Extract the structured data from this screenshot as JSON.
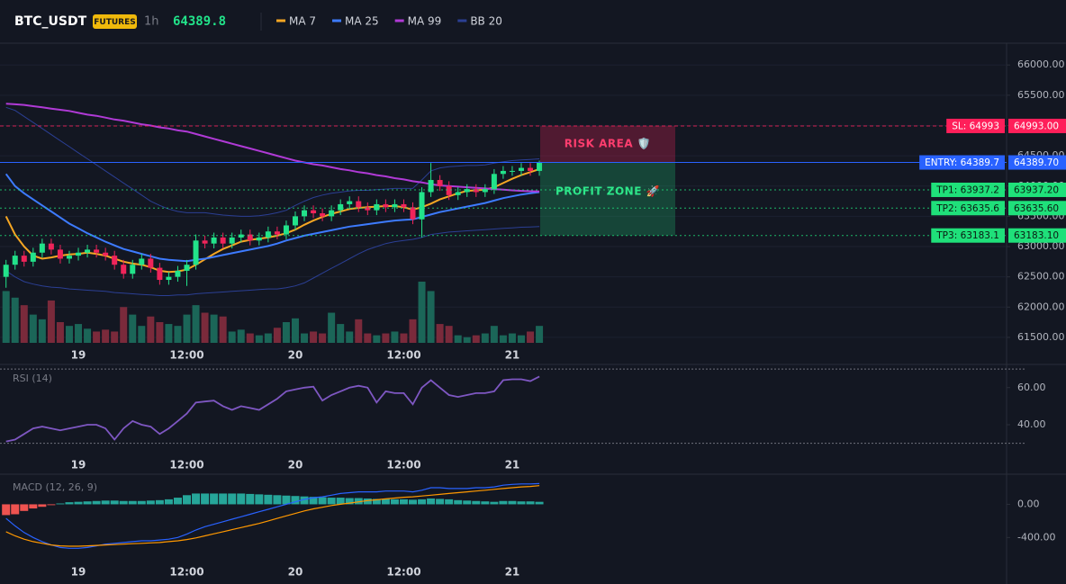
{
  "header": {
    "symbol": "BTC_USDT",
    "badge": "FUTURES",
    "interval": "1h",
    "price": "64389.8"
  },
  "chart_data": [
    {
      "type": "candlestick",
      "categories": [
        null,
        null,
        null,
        null,
        null,
        null,
        null,
        null,
        "19",
        null,
        null,
        null,
        null,
        null,
        null,
        null,
        null,
        null,
        null,
        null,
        "12:00",
        null,
        null,
        null,
        null,
        null,
        null,
        null,
        null,
        null,
        null,
        null,
        "20",
        null,
        null,
        null,
        null,
        null,
        null,
        null,
        null,
        null,
        null,
        null,
        "12:00",
        null,
        null,
        null,
        null,
        null,
        null,
        null,
        null,
        null,
        null,
        null,
        "21",
        null,
        null,
        null
      ],
      "open": [
        62500,
        62700,
        62850,
        62750,
        62900,
        63050,
        62950,
        62800,
        62850,
        62900,
        62950,
        62900,
        62850,
        62700,
        62550,
        62700,
        62800,
        62650,
        62450,
        62500,
        62600,
        62700,
        63100,
        63050,
        63150,
        63050,
        63150,
        63200,
        63100,
        63150,
        63250,
        63200,
        63350,
        63500,
        63600,
        63550,
        63500,
        63600,
        63700,
        63750,
        63650,
        63600,
        63700,
        63650,
        63700,
        63650,
        63450,
        63900,
        64100,
        64000,
        63850,
        63900,
        63950,
        63900,
        63950,
        64200,
        64250,
        64250,
        64300,
        64250
      ],
      "high": [
        62780,
        62930,
        62930,
        62980,
        63130,
        63130,
        63030,
        62930,
        62980,
        63030,
        63030,
        62980,
        62930,
        62780,
        62780,
        62880,
        62880,
        62730,
        62580,
        62680,
        62780,
        63200,
        63180,
        63230,
        63230,
        63230,
        63280,
        63280,
        63230,
        63330,
        63330,
        63430,
        63580,
        63680,
        63680,
        63630,
        63680,
        63780,
        63830,
        63830,
        63730,
        63780,
        63780,
        63780,
        63780,
        63730,
        63980,
        64380,
        64180,
        64080,
        63980,
        64030,
        64030,
        64030,
        64280,
        64330,
        64330,
        64380,
        64380,
        64420
      ],
      "low": [
        62320,
        62620,
        62670,
        62670,
        62820,
        62870,
        62720,
        62720,
        62770,
        62820,
        62820,
        62770,
        62620,
        62470,
        62470,
        62620,
        62570,
        62370,
        62370,
        62420,
        62350,
        62620,
        62970,
        62970,
        62970,
        62970,
        63070,
        63020,
        63020,
        63070,
        63120,
        63120,
        63270,
        63420,
        63470,
        63420,
        63420,
        63520,
        63620,
        63570,
        63520,
        63520,
        63570,
        63570,
        63570,
        63370,
        63150,
        63820,
        63920,
        63770,
        63770,
        63820,
        63820,
        63820,
        63870,
        64120,
        64170,
        64170,
        64170,
        64170
      ],
      "close": [
        62700,
        62850,
        62750,
        62900,
        63050,
        62950,
        62800,
        62850,
        62900,
        62950,
        62900,
        62850,
        62700,
        62550,
        62700,
        62800,
        62650,
        62450,
        62500,
        62600,
        62700,
        63100,
        63050,
        63150,
        63050,
        63150,
        63200,
        63100,
        63150,
        63250,
        63200,
        63350,
        63500,
        63600,
        63550,
        63500,
        63600,
        63700,
        63750,
        63650,
        63600,
        63700,
        63650,
        63700,
        63650,
        63450,
        63900,
        64100,
        64000,
        63850,
        63900,
        63950,
        63900,
        63950,
        64200,
        64250,
        64250,
        64300,
        64250,
        64389.8
      ],
      "volume": [
        55,
        48,
        40,
        30,
        25,
        45,
        22,
        18,
        20,
        15,
        12,
        14,
        12,
        38,
        30,
        18,
        28,
        22,
        20,
        18,
        30,
        40,
        32,
        30,
        28,
        12,
        14,
        10,
        8,
        10,
        16,
        22,
        26,
        10,
        12,
        10,
        32,
        20,
        12,
        25,
        10,
        8,
        10,
        12,
        10,
        25,
        65,
        55,
        20,
        18,
        8,
        6,
        8,
        10,
        18,
        8,
        10,
        8,
        12,
        18
      ],
      "up_color": "#22e38a",
      "down_color": "#f0245a",
      "volume_up_color": "#1b6658",
      "volume_down_color": "#7a2a3b",
      "overlays": [
        {
          "name": "MA 7",
          "color": "#f5a623",
          "values": [
            63500,
            63200,
            63000,
            62850,
            62800,
            62820,
            62850,
            62870,
            62880,
            62900,
            62880,
            62850,
            62800,
            62750,
            62720,
            62700,
            62660,
            62600,
            62580,
            62590,
            62620,
            62700,
            62790,
            62880,
            62960,
            63020,
            63080,
            63110,
            63130,
            63150,
            63180,
            63220,
            63280,
            63360,
            63430,
            63490,
            63540,
            63580,
            63620,
            63640,
            63650,
            63660,
            63670,
            63670,
            63650,
            63610,
            63650,
            63710,
            63780,
            63830,
            63880,
            63920,
            63930,
            63940,
            63980,
            64050,
            64120,
            64180,
            64230,
            64280
          ]
        },
        {
          "name": "MA 25",
          "color": "#3d7bff",
          "values": [
            64200,
            64000,
            63880,
            63780,
            63680,
            63580,
            63480,
            63380,
            63300,
            63220,
            63150,
            63080,
            63020,
            62960,
            62920,
            62880,
            62840,
            62800,
            62780,
            62770,
            62760,
            62780,
            62800,
            62830,
            62860,
            62890,
            62920,
            62950,
            62980,
            63010,
            63050,
            63100,
            63140,
            63180,
            63210,
            63240,
            63270,
            63300,
            63330,
            63350,
            63370,
            63390,
            63410,
            63430,
            63440,
            63450,
            63490,
            63530,
            63570,
            63600,
            63630,
            63660,
            63690,
            63720,
            63760,
            63800,
            63830,
            63860,
            63880,
            63900
          ]
        },
        {
          "name": "MA 99",
          "color": "#b03ad6",
          "values": [
            65360,
            65350,
            65340,
            65320,
            65300,
            65280,
            65260,
            65240,
            65210,
            65180,
            65160,
            65130,
            65100,
            65080,
            65050,
            65020,
            65000,
            64970,
            64950,
            64920,
            64900,
            64860,
            64820,
            64780,
            64740,
            64700,
            64660,
            64620,
            64580,
            64540,
            64500,
            64460,
            64420,
            64390,
            64360,
            64340,
            64310,
            64280,
            64260,
            64230,
            64210,
            64180,
            64160,
            64130,
            64110,
            64080,
            64060,
            64030,
            64010,
            64000,
            63990,
            63980,
            63970,
            63960,
            63950,
            63940,
            63930,
            63920,
            63915,
            63910
          ]
        }
      ],
      "bands": {
        "name": "BB 20",
        "color": "#2b3f94",
        "upper": [
          65300,
          65250,
          65150,
          65050,
          64950,
          64850,
          64750,
          64650,
          64550,
          64450,
          64350,
          64250,
          64150,
          64050,
          63950,
          63850,
          63750,
          63680,
          63620,
          63580,
          63560,
          63560,
          63560,
          63540,
          63520,
          63510,
          63500,
          63500,
          63510,
          63530,
          63560,
          63600,
          63680,
          63750,
          63810,
          63850,
          63880,
          63900,
          63920,
          63930,
          63930,
          63940,
          63950,
          63960,
          63960,
          63960,
          64100,
          64250,
          64300,
          64320,
          64330,
          64340,
          64340,
          64350,
          64380,
          64400,
          64420,
          64430,
          64440,
          64450
        ],
        "lower": [
          62600,
          62500,
          62420,
          62380,
          62350,
          62330,
          62320,
          62300,
          62290,
          62280,
          62270,
          62260,
          62240,
          62230,
          62220,
          62210,
          62200,
          62190,
          62190,
          62200,
          62200,
          62220,
          62230,
          62240,
          62250,
          62260,
          62270,
          62280,
          62290,
          62300,
          62300,
          62320,
          62350,
          62400,
          62480,
          62560,
          62640,
          62720,
          62800,
          62880,
          62950,
          63000,
          63050,
          63080,
          63100,
          63120,
          63150,
          63200,
          63220,
          63240,
          63250,
          63260,
          63270,
          63280,
          63290,
          63300,
          63310,
          63320,
          63325,
          63330
        ]
      },
      "ylim": [
        61380,
        66360
      ],
      "yticks": [
        {
          "value": 61500,
          "label": "61500.00"
        },
        {
          "value": 62000,
          "label": "62000.00"
        },
        {
          "value": 62500,
          "label": "62500.00"
        },
        {
          "value": 63000,
          "label": "63000.00"
        },
        {
          "value": 63500,
          "label": "63500.00"
        },
        {
          "value": 64000,
          "label": "64000.00"
        },
        {
          "value": 64500,
          "label": "64500.00"
        },
        {
          "value": 65000,
          "label": "65000.00"
        },
        {
          "value": 65500,
          "label": "65500.00"
        },
        {
          "value": 66000,
          "label": "66000.00"
        }
      ],
      "grid": true,
      "levels": [
        {
          "label": "SL: 64993",
          "value": 64993,
          "value_label": "64993.00",
          "color": "#ff1f5a",
          "text_color": "#ffffff",
          "style": "dashed"
        },
        {
          "label": "ENTRY: 64389.7",
          "value": 64389.7,
          "value_label": "64389.70",
          "color": "#2962ff",
          "text_color": "#ffffff",
          "style": "solid"
        },
        {
          "label": "TP1: 63937.2",
          "value": 63937.2,
          "value_label": "63937.20",
          "color": "#1fe07a",
          "text_color": "#0b1a12",
          "style": "dotted"
        },
        {
          "label": "TP2: 63635.6",
          "value": 63635.6,
          "value_label": "63635.60",
          "color": "#1fe07a",
          "text_color": "#0b1a12",
          "style": "dotted"
        },
        {
          "label": "TP3: 63183.1",
          "value": 63183.1,
          "value_label": "63183.10",
          "color": "#1fe07a",
          "text_color": "#0b1a12",
          "style": "dotted"
        }
      ],
      "zones": [
        {
          "label": "RISK AREA 🛡️",
          "color": "#f0245a",
          "text_color": "#ff3d6e"
        },
        {
          "label": "PROFIT ZONE 🚀",
          "color": "#1fbf73",
          "text_color": "#2ee68a"
        }
      ]
    },
    {
      "type": "line",
      "title": "RSI (14)",
      "color": "#7e57c2",
      "values": [
        31,
        32,
        35,
        38,
        39,
        38,
        37,
        38,
        39,
        40,
        40,
        38,
        32,
        38,
        42,
        40,
        39,
        35,
        38,
        42,
        46,
        52,
        52.5,
        53,
        50,
        48,
        50,
        49,
        48,
        51,
        54,
        58,
        59,
        60,
        60.5,
        53,
        56,
        58,
        60,
        61,
        60,
        52,
        58,
        57,
        57,
        51,
        60,
        64,
        60,
        56,
        55,
        56,
        57,
        57,
        58,
        64,
        64.5,
        64.5,
        63.5,
        66
      ],
      "ylim": [
        24,
        72
      ],
      "yticks": [
        {
          "value": 60,
          "label": "60.00"
        },
        {
          "value": 40,
          "label": "40.00"
        }
      ],
      "bands": [
        30,
        70
      ]
    },
    {
      "type": "macd",
      "title": "MACD (12, 26, 9)",
      "macd": {
        "color": "#2962ff",
        "values": [
          -170,
          -260,
          -340,
          -400,
          -450,
          -490,
          -520,
          -530,
          -530,
          -520,
          -500,
          -480,
          -470,
          -460,
          -450,
          -440,
          -440,
          -430,
          -420,
          -400,
          -360,
          -310,
          -270,
          -240,
          -210,
          -180,
          -150,
          -120,
          -90,
          -60,
          -30,
          0,
          30,
          60,
          80,
          90,
          110,
          130,
          140,
          150,
          150,
          150,
          160,
          160,
          160,
          150,
          170,
          200,
          200,
          190,
          190,
          190,
          200,
          200,
          210,
          230,
          240,
          245,
          245,
          250
        ]
      },
      "signal": {
        "color": "#ff9800",
        "values": [
          -330,
          -380,
          -420,
          -450,
          -470,
          -490,
          -500,
          -505,
          -505,
          -500,
          -495,
          -490,
          -485,
          -480,
          -475,
          -470,
          -465,
          -460,
          -450,
          -440,
          -425,
          -405,
          -380,
          -355,
          -330,
          -305,
          -280,
          -255,
          -230,
          -200,
          -170,
          -140,
          -110,
          -80,
          -55,
          -35,
          -15,
          0,
          15,
          30,
          45,
          55,
          65,
          75,
          85,
          90,
          100,
          110,
          120,
          130,
          140,
          150,
          160,
          170,
          180,
          190,
          200,
          210,
          215,
          225
        ]
      },
      "histogram": {
        "up_color": "#26a69a",
        "down_color": "#ef5350",
        "values": [
          -130,
          -120,
          -80,
          -50,
          -30,
          -10,
          10,
          25,
          30,
          35,
          40,
          45,
          45,
          40,
          40,
          40,
          45,
          50,
          60,
          80,
          110,
          130,
          130,
          130,
          130,
          130,
          130,
          125,
          120,
          115,
          110,
          105,
          100,
          95,
          90,
          85,
          80,
          80,
          75,
          75,
          70,
          65,
          65,
          60,
          60,
          55,
          60,
          70,
          65,
          60,
          50,
          45,
          40,
          35,
          30,
          40,
          40,
          35,
          35,
          30
        ]
      },
      "ylim": [
        -700,
        330
      ],
      "yticks": [
        {
          "value": 0,
          "label": "0.00"
        },
        {
          "value": -400,
          "label": "-400.00"
        }
      ]
    }
  ]
}
